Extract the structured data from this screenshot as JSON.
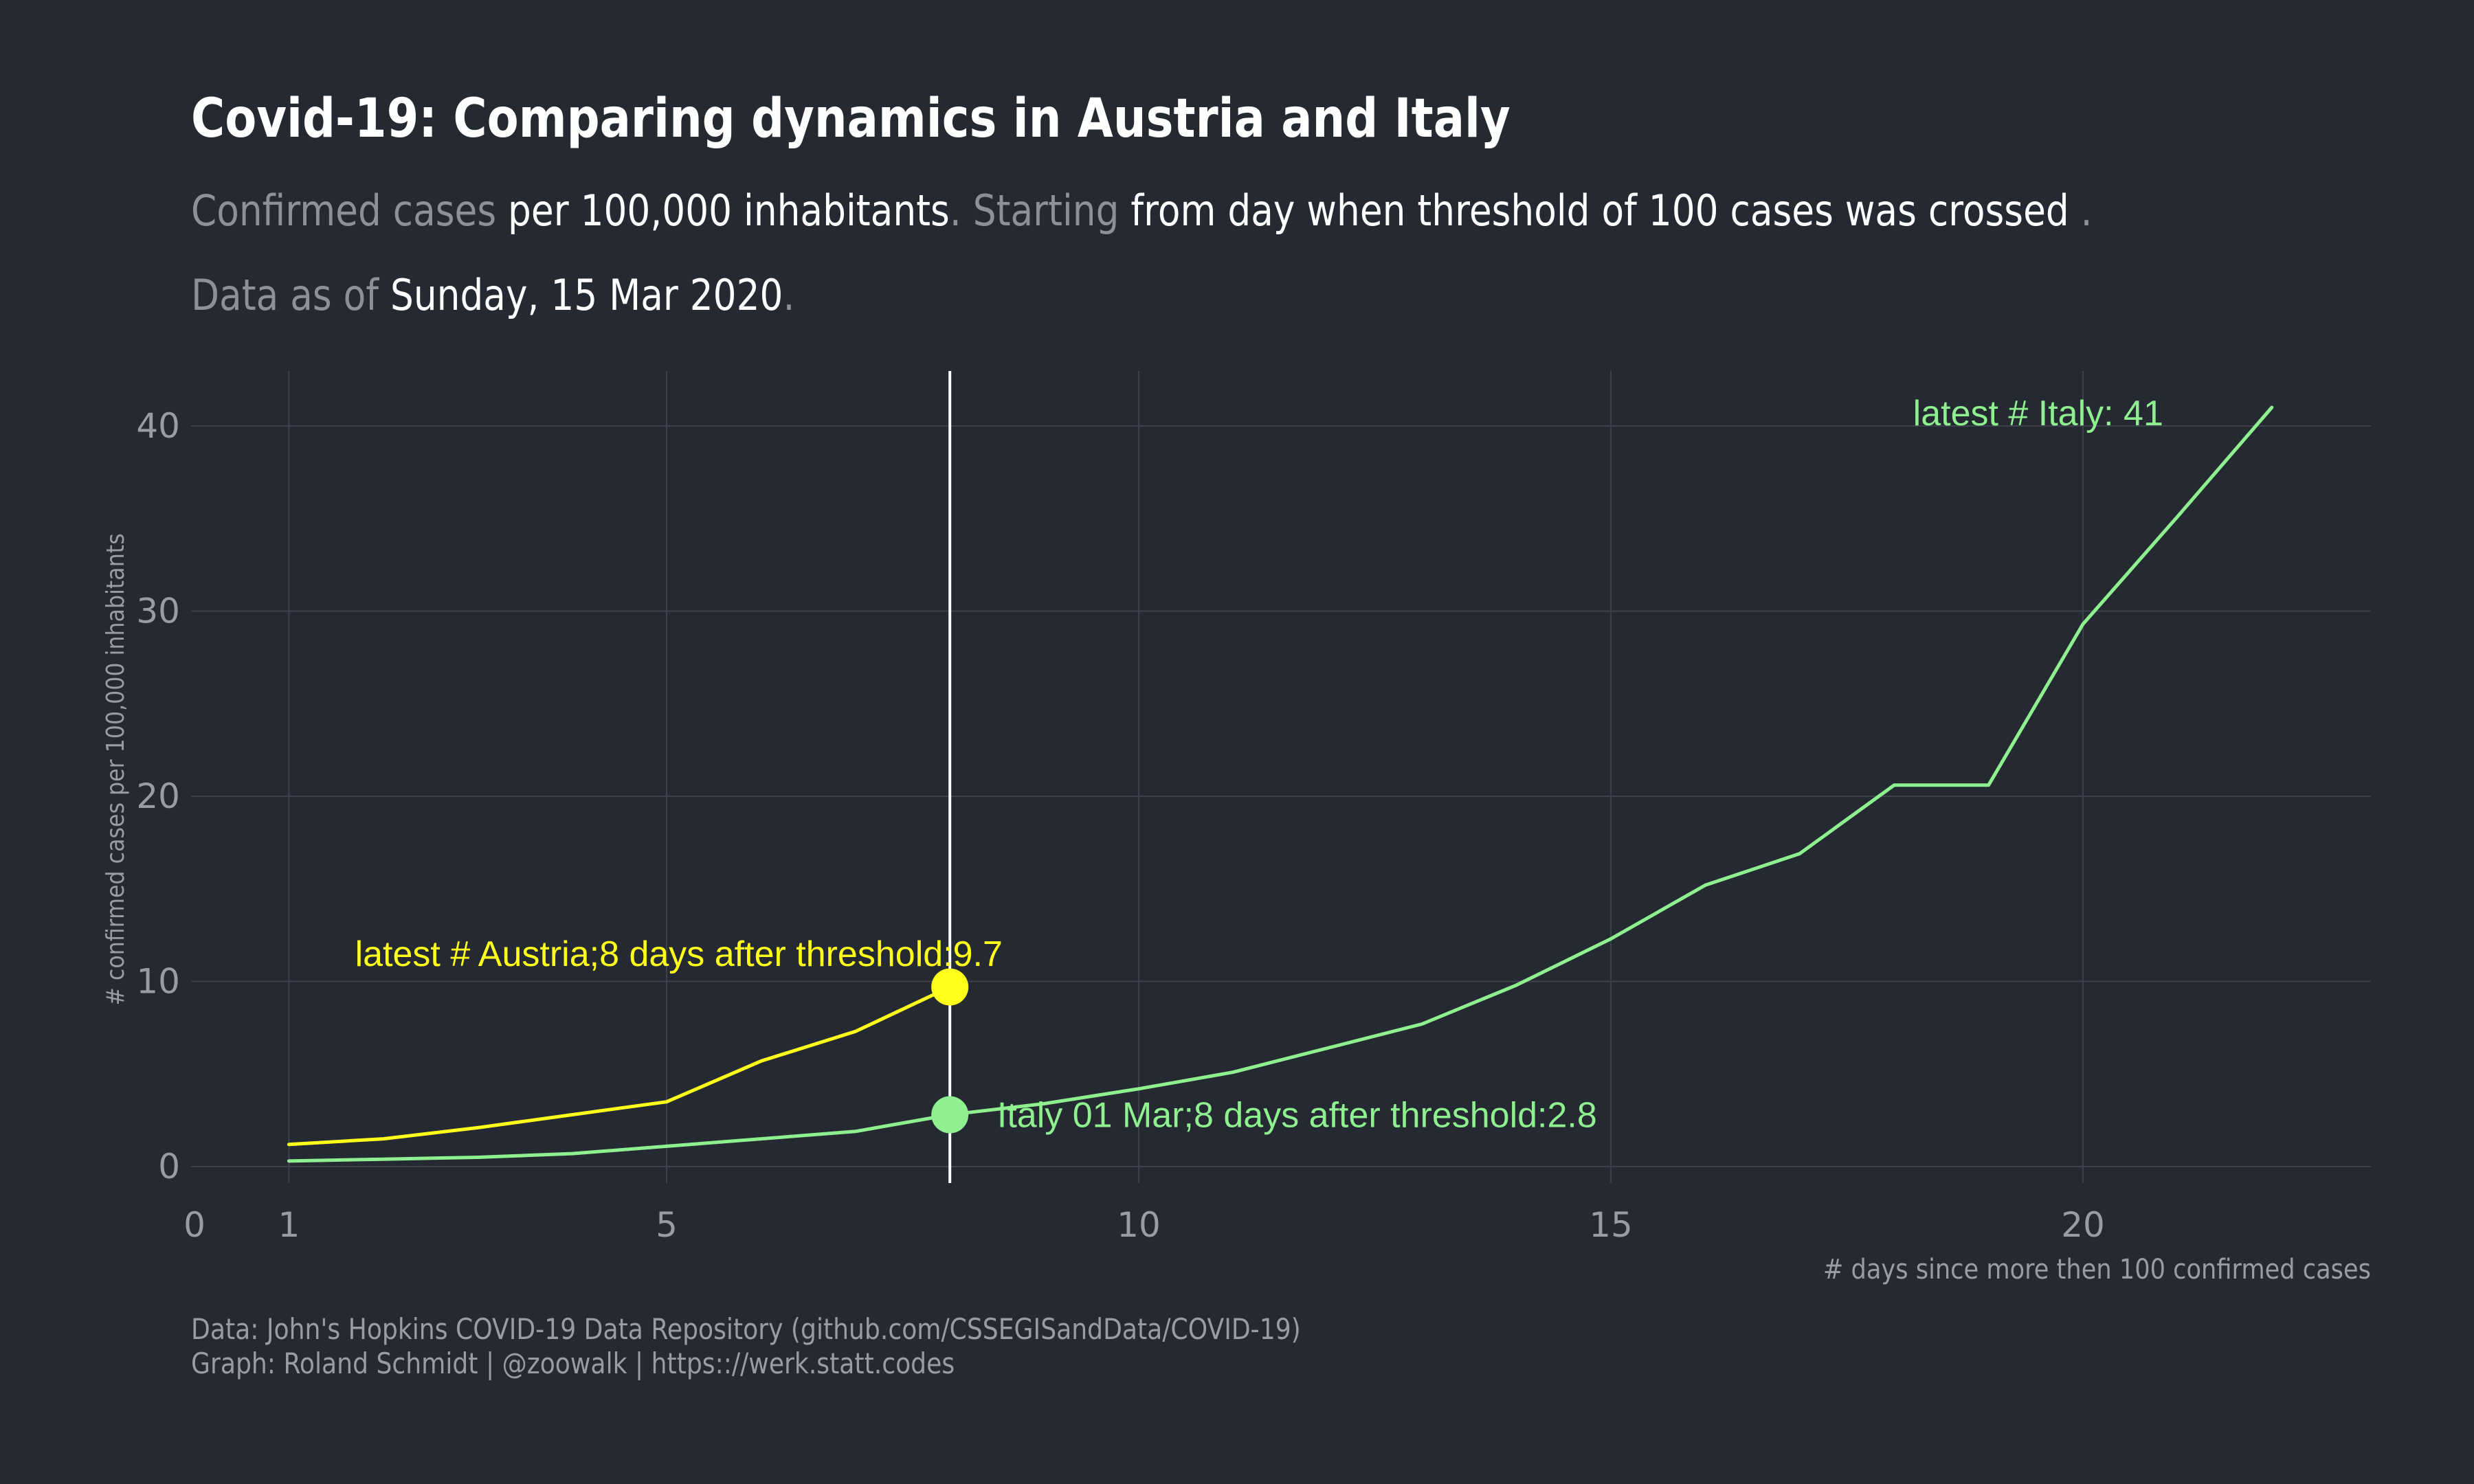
{
  "header": {
    "title": "Covid-19: Comparing dynamics in Austria and Italy",
    "subtitle_parts": [
      "Confirmed cases",
      " per 100,000 inhabitants",
      ". Starting",
      " from day when threshold of 100 cases was crossed",
      " ."
    ],
    "asof_parts": [
      "Data as of ",
      "Sunday, 15 Mar 2020",
      "."
    ]
  },
  "caption": {
    "line1": "Data: John's Hopkins  COVID-19 Data Repository (github.com/CSSEGISandData/COVID-19)",
    "line2": "Graph: Roland Schmidt | @zoowalk | https:://werk.statt.codes"
  },
  "colors": {
    "background": "#252932",
    "grid": "#3c414b",
    "austria": "#ffff19",
    "italy": "#8ff08f",
    "vline": "#ffffff",
    "tick": "#9a9ca2"
  },
  "chart_data": {
    "type": "line",
    "xlabel": "# days since more then 100 confirmed cases",
    "ylabel": "# confirmed cases per 100,000 inhabitants",
    "xlim": [
      0,
      23
    ],
    "ylim": [
      0,
      43
    ],
    "x_ticks": [
      0,
      1,
      5,
      10,
      15,
      20
    ],
    "y_ticks": [
      0,
      10,
      20,
      30,
      40
    ],
    "vline_x": 8,
    "series": [
      {
        "name": "Austria",
        "x": [
          1,
          2,
          3,
          4,
          5,
          6,
          7,
          8
        ],
        "values": [
          1.2,
          1.5,
          2.1,
          2.8,
          3.5,
          5.7,
          7.3,
          9.7
        ]
      },
      {
        "name": "Italy",
        "x": [
          1,
          2,
          3,
          4,
          5,
          6,
          7,
          8,
          9,
          10,
          11,
          12,
          13,
          14,
          15,
          16,
          17,
          18,
          19,
          20,
          21,
          22
        ],
        "values": [
          0.3,
          0.4,
          0.5,
          0.7,
          1.1,
          1.5,
          1.9,
          2.8,
          3.4,
          4.2,
          5.1,
          6.4,
          7.7,
          9.8,
          12.3,
          15.2,
          16.9,
          20.6,
          20.6,
          29.3,
          35.1,
          41.0
        ]
      }
    ],
    "points": [
      {
        "series": "Austria",
        "x": 8,
        "y": 9.7
      },
      {
        "series": "Italy",
        "x": 8,
        "y": 2.8
      }
    ],
    "annotations": [
      {
        "series": "Austria",
        "text": "latest # Austria;8 days after threshold:9.7",
        "x": 1.7,
        "y": 11.5
      },
      {
        "series": "Italy",
        "text": "Italy 01 Mar;8 days after threshold:2.8",
        "x": 8.5,
        "y": 2.8
      },
      {
        "series": "Italy",
        "text": "latest # Italy: 41",
        "x": 18.2,
        "y": 40.7
      }
    ]
  }
}
